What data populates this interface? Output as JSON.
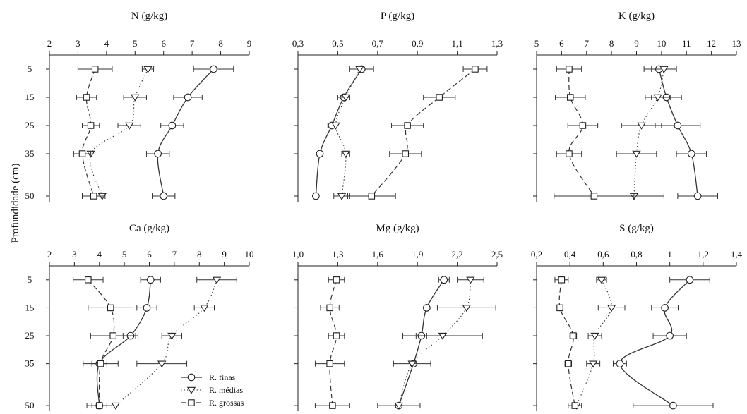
{
  "y_axis_label": "Profundidade (cm)",
  "legend": [
    {
      "label": "R. finas",
      "marker": "circle",
      "dash": "solid"
    },
    {
      "label": "R. médias",
      "marker": "triangle",
      "dash": "dotted"
    },
    {
      "label": "R. grossas",
      "marker": "square",
      "dash": "dashed"
    }
  ],
  "chart_data": [
    {
      "type": "line",
      "title": "N (g/kg)",
      "x_ticks": [
        "2",
        "3",
        "4",
        "5",
        "6",
        "7",
        "8",
        "9"
      ],
      "xlim": [
        2,
        9
      ],
      "ylim": [
        0,
        52
      ],
      "y_ticks": [
        "5",
        "15",
        "25",
        "35",
        "50"
      ],
      "y": [
        5,
        15,
        25,
        35,
        50
      ],
      "series": [
        {
          "name": "R. finas",
          "x": [
            7.75,
            6.85,
            6.3,
            5.8,
            6.0
          ],
          "err": [
            0.7,
            0.5,
            0.4,
            0.4,
            0.4
          ]
        },
        {
          "name": "R. médias",
          "x": [
            5.45,
            5.0,
            4.8,
            3.45,
            3.85
          ],
          "err": [
            0.2,
            0.4,
            0.4,
            0.0,
            0.0
          ]
        },
        {
          "name": "R. grossas",
          "x": [
            3.6,
            3.3,
            3.45,
            3.15,
            3.55
          ],
          "err": [
            0.6,
            0.35,
            0.3,
            0.3,
            0.4
          ]
        }
      ]
    },
    {
      "type": "line",
      "title": "P (g/kg)",
      "x_ticks": [
        "0,3",
        "0,5",
        "0,7",
        "0,9",
        "1,1",
        "1,3"
      ],
      "xlim": [
        0.3,
        1.3
      ],
      "ylim": [
        0,
        52
      ],
      "y_ticks": [
        "5",
        "15",
        "25",
        "35",
        "50"
      ],
      "y": [
        5,
        15,
        25,
        35,
        50
      ],
      "series": [
        {
          "name": "R. finas",
          "x": [
            0.62,
            0.53,
            0.47,
            0.41,
            0.39
          ],
          "err": [
            0.06,
            0.03,
            0.02,
            0.0,
            0.0
          ]
        },
        {
          "name": "R. médias",
          "x": [
            0.61,
            0.54,
            0.49,
            0.54,
            0.52
          ],
          "err": [
            0.0,
            0.02,
            0.0,
            0.02,
            0.04
          ]
        },
        {
          "name": "R. grossas",
          "x": [
            1.19,
            1.01,
            0.85,
            0.84,
            0.67
          ],
          "err": [
            0.06,
            0.08,
            0.08,
            0.08,
            0.12
          ]
        }
      ]
    },
    {
      "type": "line",
      "title": "K (g/kg)",
      "x_ticks": [
        "5",
        "6",
        "7",
        "8",
        "9",
        "10",
        "11",
        "12",
        "13"
      ],
      "xlim": [
        5,
        13
      ],
      "ylim": [
        0,
        52
      ],
      "y_ticks": [
        "5",
        "15",
        "25",
        "35",
        "50"
      ],
      "y": [
        5,
        15,
        25,
        35,
        50
      ],
      "series": [
        {
          "name": "R. finas",
          "x": [
            9.9,
            10.2,
            10.65,
            11.2,
            11.45
          ],
          "err": [
            0.6,
            0.6,
            0.9,
            0.6,
            0.8
          ]
        },
        {
          "name": "R. médias",
          "x": [
            10.1,
            9.85,
            9.2,
            9.0,
            8.9
          ],
          "err": [
            0.5,
            0.5,
            0.8,
            0.8,
            1.2
          ]
        },
        {
          "name": "R. grossas",
          "x": [
            6.3,
            6.35,
            6.85,
            6.3,
            7.3
          ],
          "err": [
            0.5,
            0.6,
            0.6,
            0.5,
            1.6
          ]
        }
      ]
    },
    {
      "type": "line",
      "title": "Ca (g/kg)",
      "x_ticks": [
        "2",
        "3",
        "4",
        "5",
        "6",
        "7",
        "8",
        "9",
        "10"
      ],
      "xlim": [
        2,
        10
      ],
      "ylim": [
        0,
        52
      ],
      "y_ticks": [
        "5",
        "15",
        "25",
        "35",
        "50"
      ],
      "y": [
        5,
        15,
        25,
        35,
        50
      ],
      "series": [
        {
          "name": "R. finas",
          "x": [
            6.05,
            5.9,
            5.25,
            4.0,
            4.0
          ],
          "err": [
            0.4,
            0.4,
            0.3,
            0.3,
            0.3
          ]
        },
        {
          "name": "R. médias",
          "x": [
            8.7,
            8.2,
            6.9,
            6.5,
            4.65
          ],
          "err": [
            0.8,
            0.4,
            0.4,
            1.0,
            0.0
          ]
        },
        {
          "name": "R. grossas",
          "x": [
            3.55,
            4.45,
            4.55,
            4.05,
            4.0
          ],
          "err": [
            0.6,
            0.9,
            0.9,
            0.7,
            0.5
          ]
        }
      ]
    },
    {
      "type": "line",
      "title": "Mg (g/kg)",
      "x_ticks": [
        "1,0",
        "1,3",
        "1,6",
        "1,9",
        "2,2",
        "2,5"
      ],
      "xlim": [
        1.0,
        2.5
      ],
      "ylim": [
        0,
        52
      ],
      "y_ticks": [
        "5",
        "15",
        "25",
        "35",
        "50"
      ],
      "y": [
        5,
        15,
        25,
        35,
        50
      ],
      "series": [
        {
          "name": "R. finas",
          "x": [
            2.1,
            1.97,
            1.93,
            1.87,
            1.76
          ],
          "err": [
            0.04,
            0.0,
            0.04,
            0.0,
            0.0
          ]
        },
        {
          "name": "R. médias",
          "x": [
            2.3,
            2.27,
            2.09,
            1.86,
            1.76
          ],
          "err": [
            0.1,
            0.22,
            0.3,
            0.14,
            0.16
          ]
        },
        {
          "name": "R. grossas",
          "x": [
            1.29,
            1.24,
            1.29,
            1.24,
            1.26
          ],
          "err": [
            0.06,
            0.07,
            0.06,
            0.11,
            0.13
          ]
        }
      ]
    },
    {
      "type": "line",
      "title": "S (g/kg)",
      "x_ticks": [
        "0,2",
        "0,4",
        "0,6",
        "0,8",
        "1",
        "1,2",
        "1,4"
      ],
      "xlim": [
        0.2,
        1.4
      ],
      "ylim": [
        0,
        52
      ],
      "y_ticks": [
        "5",
        "15",
        "25",
        "35",
        "50"
      ],
      "y": [
        5,
        15,
        25,
        35,
        50
      ],
      "series": [
        {
          "name": "R. finas",
          "x": [
            1.12,
            0.97,
            1.0,
            0.7,
            1.02
          ],
          "err": [
            0.12,
            0.08,
            0.1,
            0.04,
            0.24
          ]
        },
        {
          "name": "R. médias",
          "x": [
            0.59,
            0.65,
            0.55,
            0.54,
            0.44
          ],
          "err": [
            0.03,
            0.08,
            0.04,
            0.04,
            0.0
          ]
        },
        {
          "name": "R. grossas",
          "x": [
            0.35,
            0.34,
            0.42,
            0.39,
            0.43
          ],
          "err": [
            0.04,
            0.0,
            0.02,
            0.02,
            0.04
          ]
        }
      ]
    }
  ]
}
